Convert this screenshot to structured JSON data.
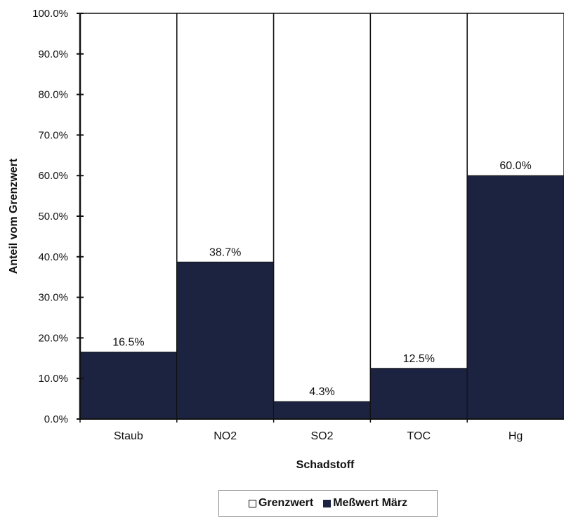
{
  "chart_data": {
    "type": "bar",
    "stacked_to": 100,
    "categories": [
      "Staub",
      "NO2",
      "SO2",
      "TOC",
      "Hg"
    ],
    "series": [
      {
        "name": "Grenzwert",
        "values": [
          100,
          100,
          100,
          100,
          100
        ],
        "color": "#ffffff"
      },
      {
        "name": "Meßwert März",
        "values": [
          16.5,
          38.7,
          4.3,
          12.5,
          60.0
        ],
        "color": "#1b2341"
      }
    ],
    "data_labels": [
      "16.5%",
      "38.7%",
      "4.3%",
      "12.5%",
      "60.0%"
    ],
    "y_ticks": [
      "0.0%",
      "10.0%",
      "20.0%",
      "30.0%",
      "40.0%",
      "50.0%",
      "60.0%",
      "70.0%",
      "80.0%",
      "90.0%",
      "100.0%"
    ],
    "ylim": [
      0,
      100
    ],
    "xlabel": "Schadstoff",
    "ylabel": "Anteil vom Grenzwert",
    "legend_position": "bottom",
    "grid": false
  },
  "legend": {
    "items": [
      {
        "label": "Grenzwert"
      },
      {
        "label": "Meßwert März"
      }
    ]
  }
}
